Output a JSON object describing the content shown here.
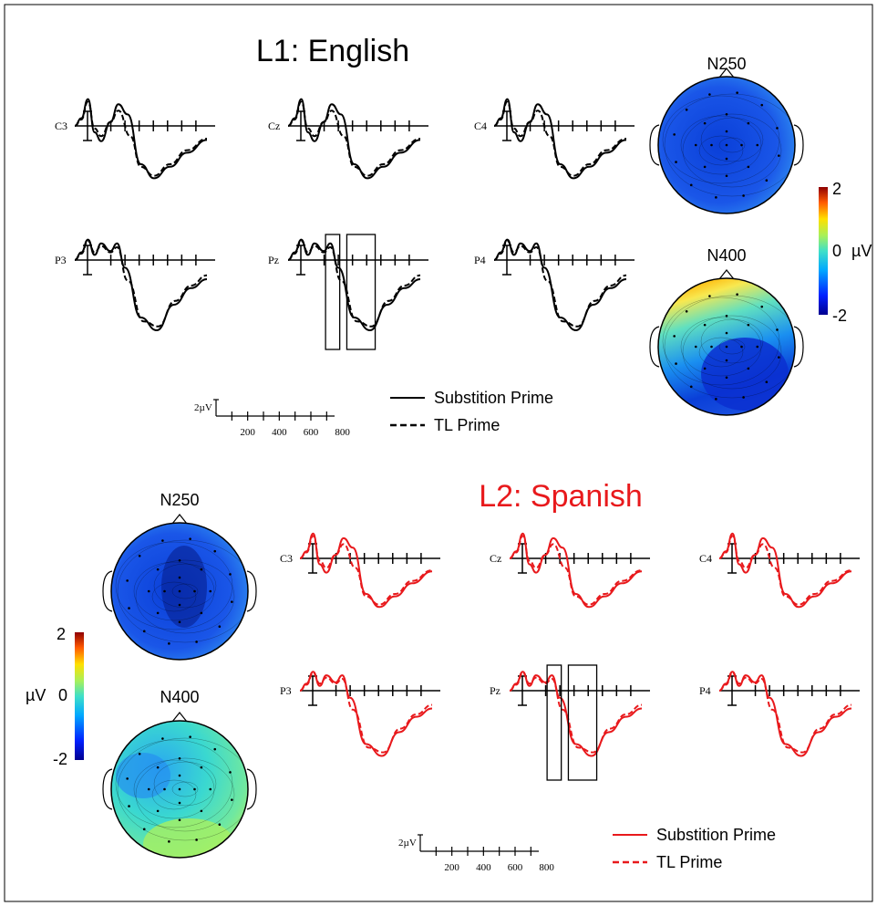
{
  "sections": [
    {
      "title": "L1: English",
      "color": "#000000",
      "legend": {
        "solid_label": "Substition Prime",
        "dashed_label": "TL Prime"
      },
      "scale": {
        "amp_label": "2µV",
        "ticks": [
          "200",
          "400",
          "600",
          "800"
        ]
      },
      "topomaps": [
        {
          "label": "N250",
          "fill": "blue"
        },
        {
          "label": "N400",
          "fill": "front-yellow"
        }
      ],
      "colorbar": {
        "max": "2",
        "mid": "0",
        "min": "-2",
        "unit": "µV"
      },
      "electrodes": [
        "C3",
        "Cz",
        "C4",
        "P3",
        "Pz",
        "P4"
      ]
    },
    {
      "title": "L2: Spanish",
      "color": "#e8191c",
      "legend": {
        "solid_label": "Substition Prime",
        "dashed_label": "TL Prime"
      },
      "scale": {
        "amp_label": "2µV",
        "ticks": [
          "200",
          "400",
          "600",
          "800"
        ]
      },
      "topomaps": [
        {
          "label": "N250",
          "fill": "blue"
        },
        {
          "label": "N400",
          "fill": "cyan-green"
        }
      ],
      "colorbar": {
        "max": "2",
        "mid": "0",
        "min": "-2",
        "unit": "µV"
      },
      "electrodes": [
        "C3",
        "Cz",
        "C4",
        "P3",
        "Pz",
        "P4"
      ]
    }
  ],
  "chart_data": {
    "type": "line",
    "x_unit": "ms",
    "x_ticks": [
      200,
      400,
      600,
      800
    ],
    "y_scale_uV": 2,
    "time_windows_ms": [
      [
        200,
        300
      ],
      [
        350,
        550
      ]
    ],
    "series": [
      {
        "name": "Substition Prime",
        "style": "solid"
      },
      {
        "name": "TL Prime",
        "style": "dashed"
      }
    ]
  }
}
